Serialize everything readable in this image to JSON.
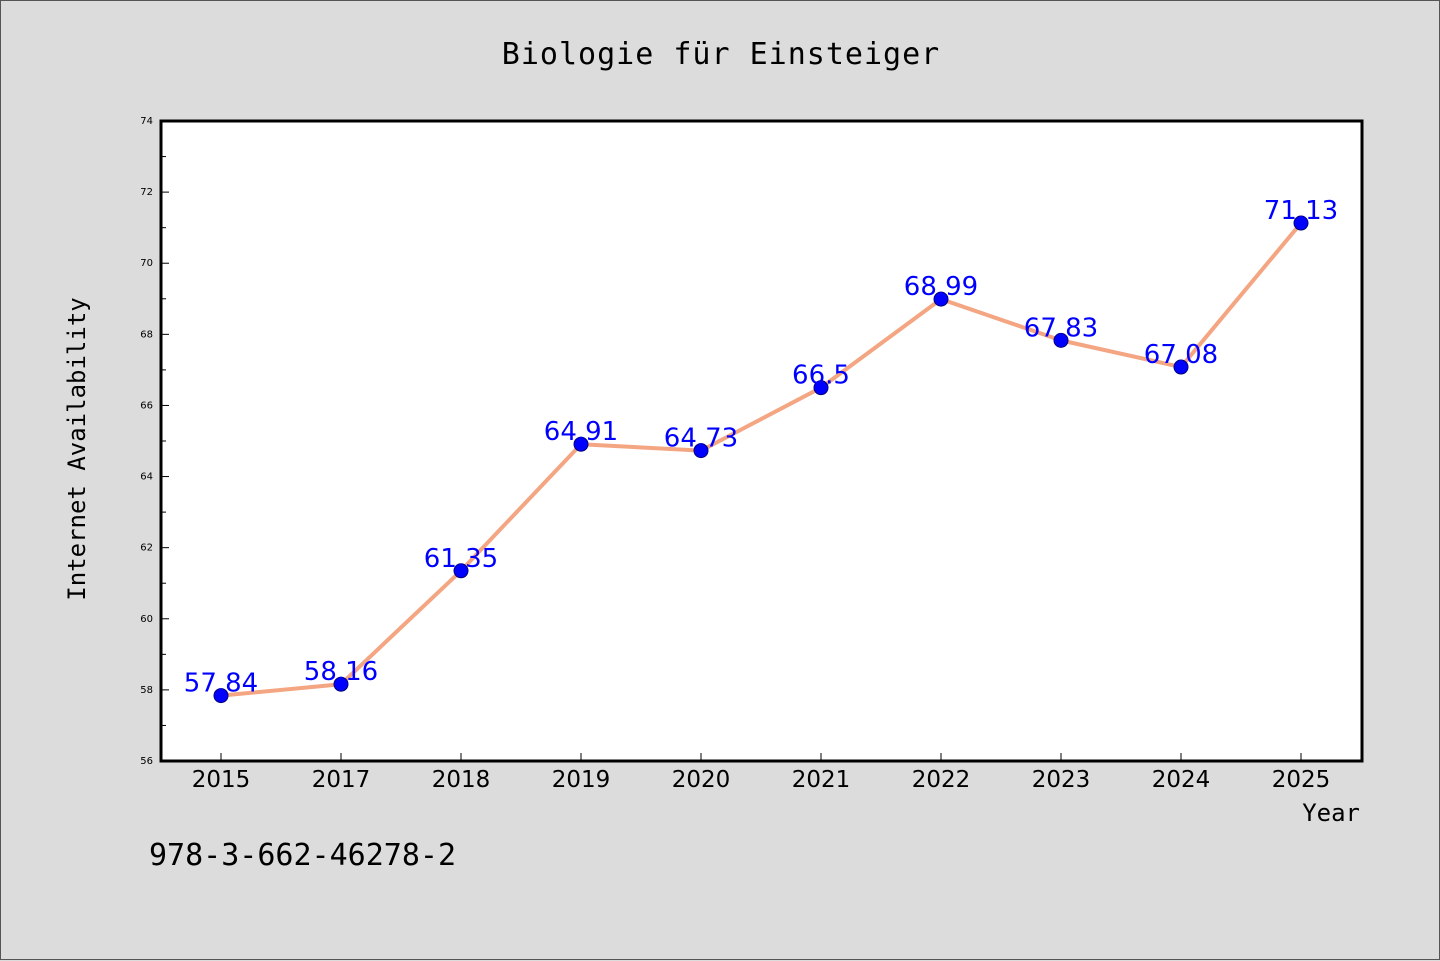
{
  "chart_data": {
    "type": "line",
    "title": "Biologie für Einsteiger",
    "xlabel": "Year",
    "ylabel": "Internet Availability",
    "categories": [
      "2015",
      "2017",
      "2018",
      "2019",
      "2020",
      "2021",
      "2022",
      "2023",
      "2024",
      "2025"
    ],
    "series": [
      {
        "values": [
          57.84,
          58.16,
          61.35,
          64.91,
          64.73,
          66.5,
          68.99,
          67.83,
          67.08,
          71.13
        ],
        "data_labels": [
          "57.84",
          "58.16",
          "61.35",
          "64.91",
          "64.73",
          "66.5",
          "68.99",
          "67.83",
          "67.08",
          "71.13"
        ]
      }
    ],
    "ylim": [
      56,
      74
    ],
    "yticks": [
      "56",
      "58",
      "60",
      "62",
      "64",
      "66",
      "68",
      "70",
      "72",
      "74"
    ],
    "grid": false,
    "legend": "none",
    "colors": {
      "line": "#f4a582",
      "marker": "#0000ff",
      "label": "#0000ff",
      "plot_bg": "#ffffff",
      "page_bg": "#dcdcdc"
    }
  },
  "footer": {
    "isbn": "978-3-662-46278-2"
  }
}
